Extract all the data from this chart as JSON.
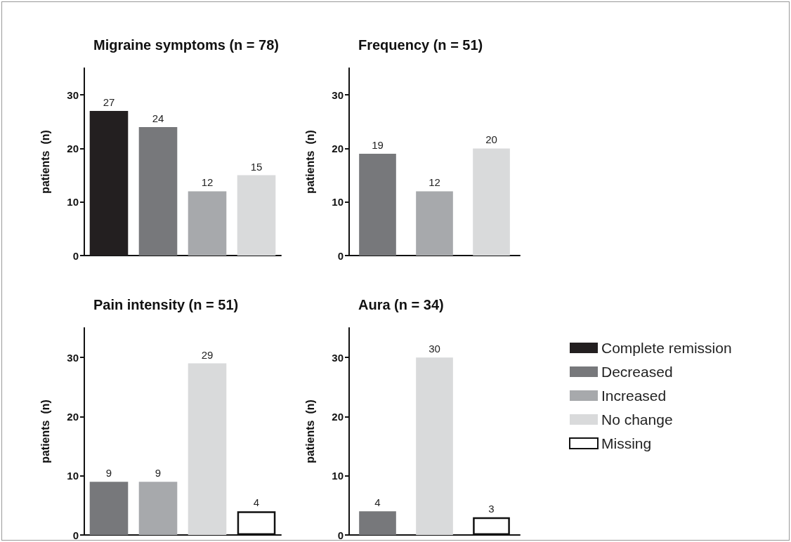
{
  "chart_data": [
    {
      "type": "bar",
      "title": "Migraine symptoms (n = 78)",
      "ylabel": "patients  (n)",
      "categories": [
        null,
        null,
        null,
        null
      ],
      "values": [
        27,
        24,
        12,
        15
      ],
      "colors": [
        "#231f20",
        "#77787b",
        "#a7a9ac",
        "#d9dadb"
      ],
      "ylim": [
        0,
        35
      ],
      "yticks": [
        0,
        10,
        20,
        30
      ],
      "data_labels": true,
      "grid": false
    },
    {
      "type": "bar",
      "title": "Frequency (n = 51)",
      "ylabel": "patients  (n)",
      "categories": [
        null,
        null,
        null
      ],
      "values": [
        19,
        12,
        20
      ],
      "colors": [
        "#77787b",
        "#a7a9ac",
        "#d9dadb"
      ],
      "ylim": [
        0,
        35
      ],
      "yticks": [
        0,
        10,
        20,
        30
      ],
      "data_labels": true,
      "grid": false
    },
    {
      "type": "bar",
      "title": "Pain intensity (n = 51)",
      "ylabel": "patients  (n)",
      "categories": [
        null,
        null,
        null,
        null
      ],
      "values": [
        9,
        9,
        29,
        4
      ],
      "colors": [
        "#77787b",
        "#a7a9ac",
        "#d9dadb",
        "#ffffff"
      ],
      "ylim": [
        0,
        35
      ],
      "yticks": [
        0,
        10,
        20,
        30
      ],
      "data_labels": true,
      "grid": false
    },
    {
      "type": "bar",
      "title": "Aura (n = 34)",
      "ylabel": "patients  (n)",
      "categories": [
        null,
        null,
        null
      ],
      "stacked": true,
      "legend": "right",
      "ylim": [
        0,
        35
      ],
      "yticks": [
        0,
        10,
        20,
        30
      ],
      "data_labels": true,
      "grid": false,
      "series": [
        {
          "name": "Complete remission",
          "color": "#231f20",
          "values": [
            null,
            null,
            null
          ]
        },
        {
          "name": "Decreased",
          "color": "#77787b",
          "values": [
            4,
            null,
            null
          ]
        },
        {
          "name": "Increased",
          "color": "#a7a9ac",
          "values": [
            null,
            null,
            null
          ]
        },
        {
          "name": "No change",
          "color": "#d9dadb",
          "values": [
            null,
            30,
            null
          ]
        },
        {
          "name": "Missing",
          "color": "#ffffff",
          "values": [
            null,
            null,
            3
          ]
        }
      ]
    }
  ]
}
